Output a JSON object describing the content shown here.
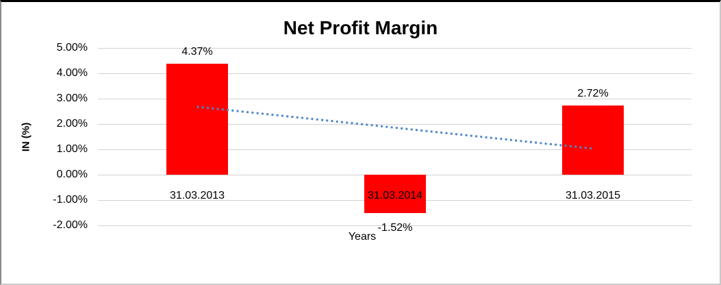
{
  "chart_data": {
    "type": "bar",
    "title": "Net Profit Margin",
    "xlabel": "Years",
    "ylabel": "IN (%)",
    "categories": [
      "31.03.2013",
      "31.03.2014",
      "31.03.2015"
    ],
    "values": [
      4.37,
      -1.52,
      2.72
    ],
    "value_labels": [
      "4.37%",
      "-1.52%",
      "2.72%"
    ],
    "tick_values": [
      5,
      4,
      3,
      2,
      1,
      0,
      -1,
      -2
    ],
    "tick_labels": [
      "5.00%",
      "4.00%",
      "3.00%",
      "2.00%",
      "1.00%",
      "0.00%",
      "-1.00%",
      "-2.00%"
    ],
    "ylim": [
      -2,
      5
    ],
    "grid": true,
    "legend": "none",
    "bar_color": "#ff0000",
    "trendline": {
      "type": "linear",
      "style": "dotted",
      "color": "#4e86c6",
      "start_value": 2.68,
      "end_value": 1.03
    }
  }
}
